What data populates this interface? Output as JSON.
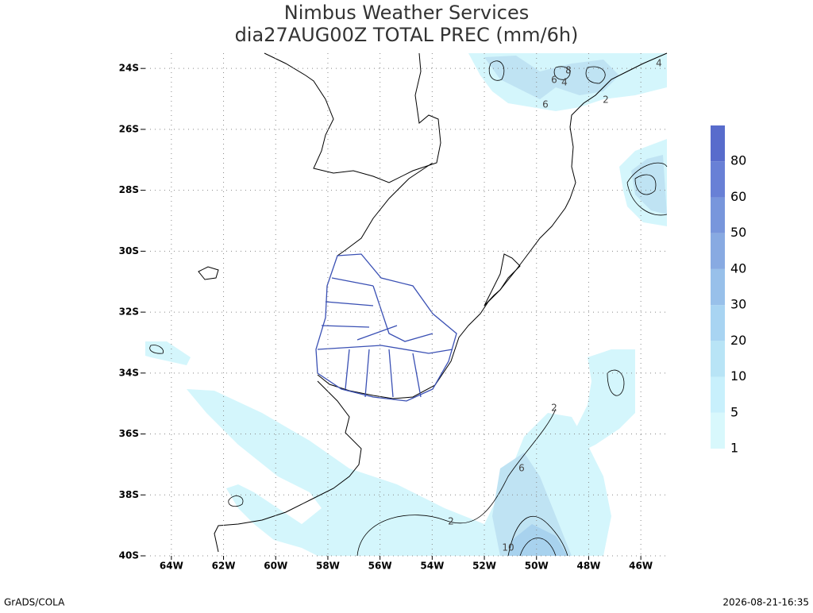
{
  "title": "Nimbus Weather Services",
  "subtitle": "dia27AUG00Z TOTAL PREC (mm/6h)",
  "map": {
    "xlim": [
      -65,
      -45
    ],
    "ylim": [
      -40,
      -23.5
    ],
    "xticks": [
      {
        "value": -64,
        "label": "64W"
      },
      {
        "value": -62,
        "label": "62W"
      },
      {
        "value": -60,
        "label": "60W"
      },
      {
        "value": -58,
        "label": "58W"
      },
      {
        "value": -56,
        "label": "56W"
      },
      {
        "value": -54,
        "label": "54W"
      },
      {
        "value": -52,
        "label": "52W"
      },
      {
        "value": -50,
        "label": "50W"
      },
      {
        "value": -48,
        "label": "48W"
      },
      {
        "value": -46,
        "label": "46W"
      }
    ],
    "yticks": [
      {
        "value": -24,
        "label": "24S"
      },
      {
        "value": -26,
        "label": "26S"
      },
      {
        "value": -28,
        "label": "28S"
      },
      {
        "value": -30,
        "label": "30S"
      },
      {
        "value": -32,
        "label": "32S"
      },
      {
        "value": -34,
        "label": "34S"
      },
      {
        "value": -36,
        "label": "36S"
      },
      {
        "value": -38,
        "label": "38S"
      },
      {
        "value": -40,
        "label": "40S"
      }
    ],
    "grid": true
  },
  "colorbar": {
    "levels": [
      1,
      5,
      10,
      20,
      30,
      40,
      50,
      60,
      80
    ],
    "colors": [
      "#d8f8fc",
      "#c8f0fc",
      "#b8e4f6",
      "#a8d4f2",
      "#98c0ea",
      "#88aae2",
      "#7896dc",
      "#6880d6",
      "#586ccc"
    ]
  },
  "contour_labels": [
    "8",
    "6",
    "4",
    "6",
    "2",
    "4",
    "2",
    "6",
    "2",
    "10"
  ],
  "footer": {
    "left": "GrADS/COLA",
    "right": "2026-08-21-16:35"
  }
}
